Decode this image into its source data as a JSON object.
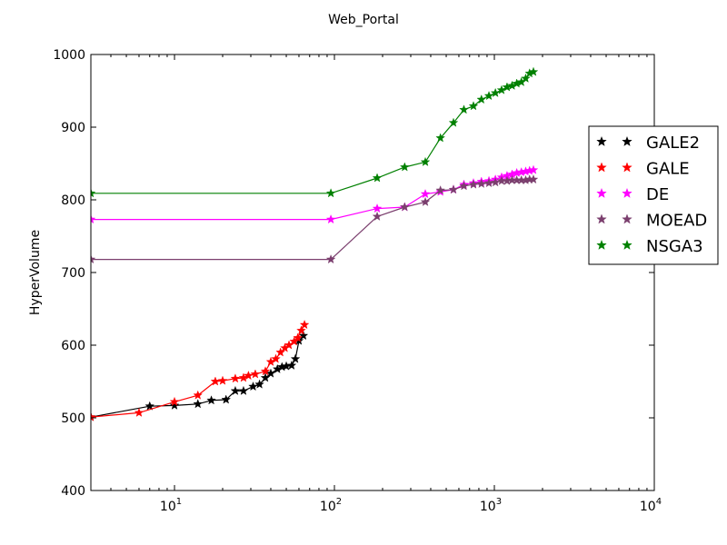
{
  "chart_data": {
    "type": "line",
    "title": "Web_Portal",
    "xlabel": "",
    "ylabel": "HyperVolume",
    "x_scale": "log",
    "xlim": [
      3,
      10000
    ],
    "ylim": [
      400,
      1000
    ],
    "x_ticks": [
      {
        "value": 10,
        "base": "10",
        "exp": "1"
      },
      {
        "value": 100,
        "base": "10",
        "exp": "2"
      },
      {
        "value": 1000,
        "base": "10",
        "exp": "3"
      },
      {
        "value": 10000,
        "base": "10",
        "exp": "4"
      }
    ],
    "y_ticks": [
      {
        "value": 400,
        "label": "400"
      },
      {
        "value": 500,
        "label": "500"
      },
      {
        "value": 600,
        "label": "600"
      },
      {
        "value": 700,
        "label": "700"
      },
      {
        "value": 800,
        "label": "800"
      },
      {
        "value": 900,
        "label": "900"
      },
      {
        "value": 1000,
        "label": "1000"
      }
    ],
    "grid": false,
    "legend_position": "right",
    "marker": "star",
    "series": [
      {
        "name": "GALE2",
        "color": "#000000",
        "x": [
          3,
          7,
          10,
          14,
          17,
          21,
          24,
          27,
          31,
          34,
          37,
          40,
          44,
          47,
          50,
          54,
          57,
          60,
          64
        ],
        "y": [
          501,
          516,
          517,
          519,
          524,
          525,
          537,
          537,
          543,
          546,
          555,
          561,
          567,
          570,
          571,
          572,
          581,
          606,
          613
        ]
      },
      {
        "name": "GALE",
        "color": "#ff0000",
        "x": [
          3,
          6,
          10,
          14,
          18,
          20,
          24,
          27,
          29,
          32,
          37,
          40,
          43,
          46,
          49,
          52,
          56,
          59,
          62,
          65
        ],
        "y": [
          501,
          507,
          522,
          531,
          550,
          551,
          554,
          555,
          558,
          560,
          564,
          577,
          581,
          590,
          596,
          600,
          605,
          610,
          620,
          628
        ]
      },
      {
        "name": "DE",
        "color": "#ff00ff",
        "x": [
          3,
          95,
          185,
          275,
          370,
          460,
          555,
          645,
          740,
          830,
          925,
          1015,
          1110,
          1200,
          1290,
          1380,
          1475,
          1570,
          1660,
          1755
        ],
        "y": [
          773,
          773,
          788,
          790,
          808,
          811,
          814,
          821,
          823,
          825,
          826,
          828,
          831,
          833,
          835,
          837,
          838,
          839,
          840,
          841
        ]
      },
      {
        "name": "MOEAD",
        "color": "#7b3f6e",
        "x": [
          3,
          95,
          185,
          275,
          370,
          460,
          555,
          645,
          740,
          830,
          925,
          1015,
          1110,
          1200,
          1290,
          1380,
          1475,
          1570,
          1660,
          1755
        ],
        "y": [
          718,
          718,
          777,
          790,
          797,
          813,
          814,
          819,
          821,
          822,
          823,
          824,
          826,
          826,
          827,
          827,
          827,
          827,
          828,
          828
        ]
      },
      {
        "name": "NSGA3",
        "color": "#008000",
        "x": [
          3,
          95,
          185,
          275,
          370,
          460,
          555,
          645,
          740,
          830,
          925,
          1015,
          1110,
          1200,
          1290,
          1380,
          1475,
          1570,
          1660,
          1755
        ],
        "y": [
          809,
          809,
          830,
          845,
          852,
          885,
          906,
          924,
          929,
          938,
          943,
          947,
          951,
          955,
          957,
          960,
          962,
          967,
          974,
          976
        ]
      }
    ]
  }
}
